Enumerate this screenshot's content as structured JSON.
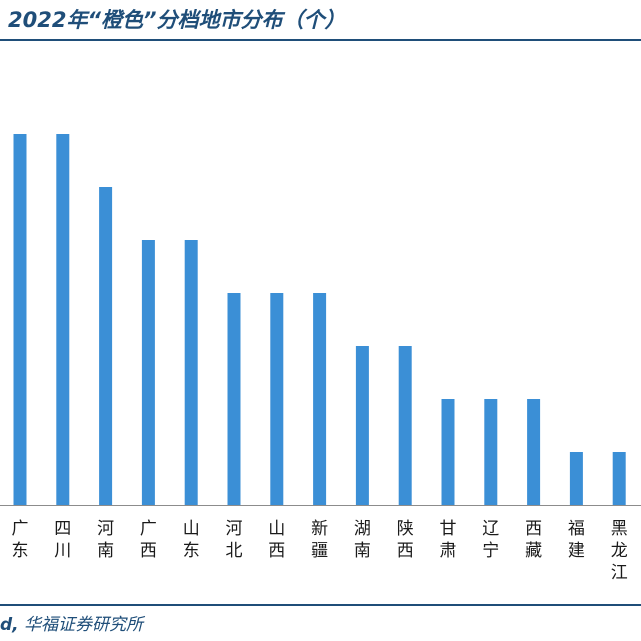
{
  "header": {
    "title": "2022年“橙色”分档地市分布（个）"
  },
  "footer": {
    "source_lead": "d,",
    "source_text": "华福证券研究所"
  },
  "colors": {
    "bar": "#3b8fd6",
    "rule": "#1f4e79",
    "text": "#1f4e79",
    "axis": "#8c8c8c"
  },
  "chart_data": {
    "type": "bar",
    "title": "2022年“橙色”分档地市分布（个）",
    "categories": [
      "广东",
      "四川",
      "河南",
      "广西",
      "山东",
      "河北",
      "山西",
      "新疆",
      "湖南",
      "陕西",
      "甘肃",
      "辽宁",
      "西藏",
      "福建",
      "黑龙江"
    ],
    "values": [
      7,
      7,
      6,
      5,
      5,
      4,
      4,
      4,
      3,
      3,
      2,
      2,
      2,
      1,
      1
    ],
    "ylim": [
      0,
      7
    ],
    "grid": false,
    "legend": "none"
  }
}
